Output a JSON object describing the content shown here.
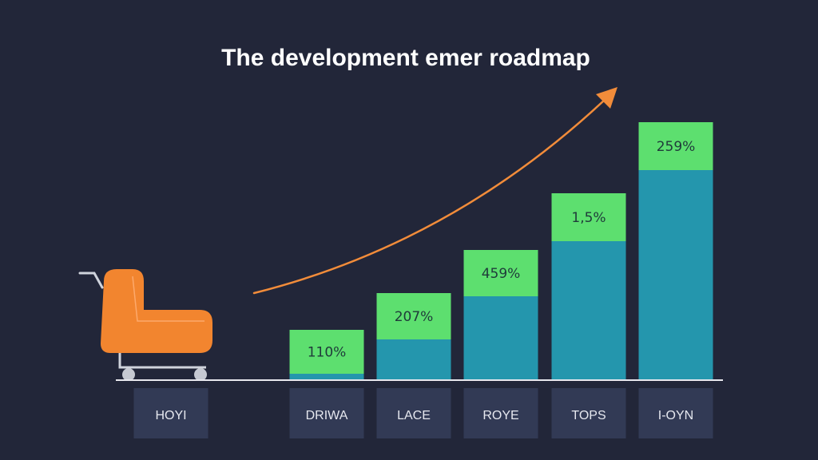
{
  "chart_data": {
    "type": "bar",
    "title": "The  development emer roadmap",
    "categories": [
      "HOYI",
      "DRIWA",
      "LACE",
      "ROYE",
      "TOPS",
      "I-OYN"
    ],
    "bars": [
      {
        "category": "DRIWA",
        "label": "110%",
        "segments": [
          7,
          55
        ]
      },
      {
        "category": "LACE",
        "label": "207%",
        "segments": [
          50,
          58
        ]
      },
      {
        "category": "ROYE",
        "label": "459%",
        "segments": [
          104,
          58
        ]
      },
      {
        "category": "TOPS",
        "label": "1,5%",
        "segments": [
          173,
          60
        ]
      },
      {
        "category": "I-OYN",
        "label": "259%",
        "segments": [
          262,
          60
        ]
      }
    ],
    "series": [
      {
        "color": "#2496ad"
      },
      {
        "color": "#5ddf6f"
      }
    ],
    "ylim": [
      0,
      325
    ],
    "xlabel": "",
    "ylabel": "",
    "grid": false,
    "legend": "none"
  },
  "colors": {
    "background": "#222639",
    "bar_base": "#2496ad",
    "bar_top": "#5ddf6f",
    "category_box": "#323a55",
    "trend_arrow": "#f28c3a",
    "cart_body": "#f2852f",
    "axis_line": "#e8e8ee"
  },
  "icons": {
    "cart": "shopping-cart-icon",
    "trend": "trend-arrow-icon"
  }
}
